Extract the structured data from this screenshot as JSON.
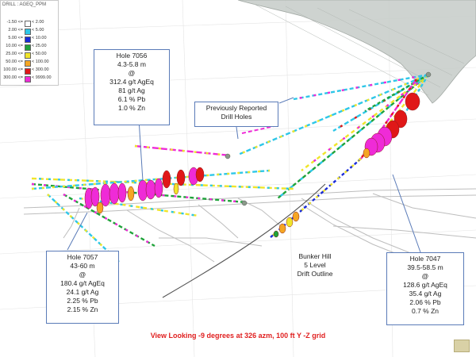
{
  "window_title": "DRILL : AGEQ_PPM",
  "legend": {
    "title": "DRILL : AGEQ_PPM",
    "rows": [
      {
        "from": "-1.50",
        "to": "2.00",
        "color": "#ffffff"
      },
      {
        "from": "2.00",
        "to": "5.00",
        "color": "#2ec7e8"
      },
      {
        "from": "5.00",
        "to": "10.00",
        "color": "#1a2bd6"
      },
      {
        "from": "10.00",
        "to": "25.00",
        "color": "#1fa33a"
      },
      {
        "from": "25.00",
        "to": "50.00",
        "color": "#f0e52a"
      },
      {
        "from": "50.00",
        "to": "100.00",
        "color": "#f5a623"
      },
      {
        "from": "100.00",
        "to": "300.00",
        "color": "#e01818"
      },
      {
        "from": "300.00",
        "to": "9999.00",
        "color": "#ef2bd7"
      }
    ]
  },
  "callouts": {
    "hole_7056": {
      "lines": [
        "Hole 7056",
        "4.3-5.8 m",
        "@",
        "312.4 g/t AgEq",
        "81 g/t Ag",
        "6.1 % Pb",
        "1.0 % Zn"
      ]
    },
    "previous": {
      "lines": [
        "Previously Reported",
        "Drill Holes"
      ]
    },
    "hole_7057": {
      "lines": [
        "Hole 7057",
        "43-60 m",
        "@",
        "180.4 g/t AgEq",
        "24.1 g/t Ag",
        "2.25 % Pb",
        "2.15 % Zn"
      ]
    },
    "hole_7047": {
      "lines": [
        "Hole 7047",
        "39.5-58.5 m",
        "@",
        "128.6 g/t AgEq",
        "35.4 g/t Ag",
        "2.06 % Pb",
        "0.7 % Zn"
      ]
    }
  },
  "bunker_label": {
    "lines": [
      "Bunker Hill",
      "5 Level",
      "Drift Outline"
    ]
  },
  "caption": "View Looking  -9 degrees at 326 azm, 100 ft Y -Z grid",
  "colors": {
    "accent": "#e02020",
    "callout_border": "#5a7bb8",
    "drift": "#bdbdbd"
  }
}
